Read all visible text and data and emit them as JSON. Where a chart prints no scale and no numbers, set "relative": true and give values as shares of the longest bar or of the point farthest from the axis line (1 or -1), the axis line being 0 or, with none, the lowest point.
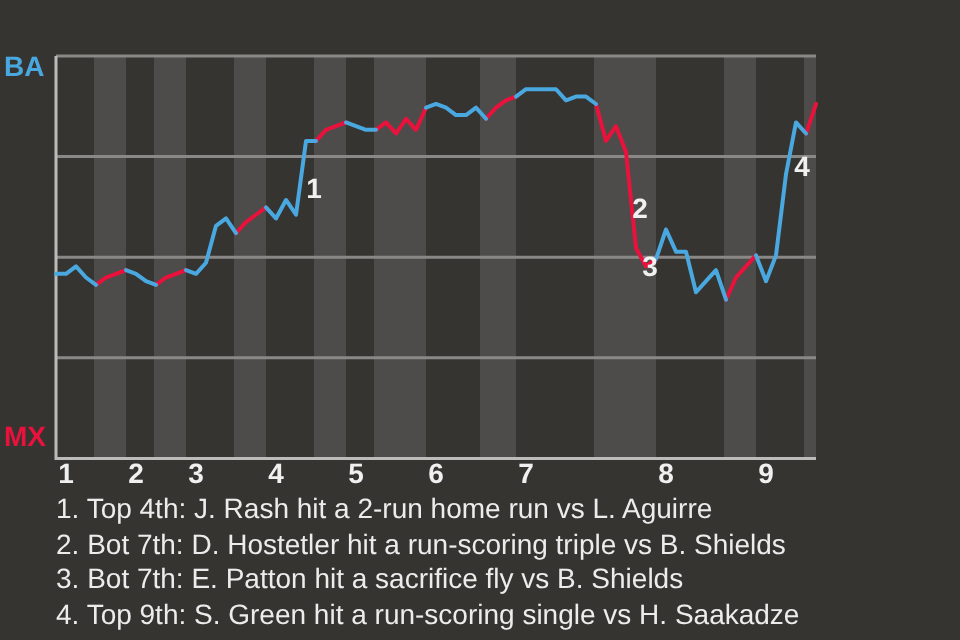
{
  "chart_data": {
    "type": "line",
    "relative": true,
    "categories": [
      null,
      "1",
      null,
      null,
      null,
      null,
      null,
      null,
      "2",
      null,
      null,
      null,
      null,
      null,
      "3",
      null,
      null,
      null,
      null,
      null,
      null,
      null,
      "4",
      null,
      null,
      null,
      null,
      null,
      null,
      null,
      "5",
      null,
      null,
      null,
      null,
      null,
      null,
      null,
      "6",
      null,
      null,
      null,
      null,
      null,
      null,
      null,
      null,
      "7",
      null,
      null,
      null,
      null,
      null,
      null,
      null,
      null,
      null,
      null,
      null,
      null,
      null,
      "8",
      null,
      null,
      null,
      null,
      null,
      null,
      null,
      null,
      null,
      "9",
      null,
      null,
      null,
      null,
      null
    ],
    "tick_labels": "x",
    "grid": "y",
    "legend": false,
    "marker": "none",
    "line_style": "solid",
    "series": [
      {
        "name": "BA",
        "color": "#4aa8e0",
        "values": [
          0.5,
          0.5,
          0.52,
          0.49,
          0.47,
          null,
          null,
          0.51,
          0.5,
          0.48,
          0.47,
          null,
          null,
          0.51,
          0.5,
          0.53,
          0.63,
          0.65,
          0.61,
          null,
          null,
          0.68,
          0.65,
          0.7,
          0.66,
          0.86,
          0.86,
          null,
          null,
          0.91,
          0.9,
          0.89,
          0.89,
          null,
          null,
          null,
          null,
          0.95,
          0.96,
          0.95,
          0.93,
          0.93,
          0.95,
          0.92,
          null,
          null,
          0.98,
          1.0,
          1.0,
          1.0,
          1.0,
          0.97,
          0.98,
          0.98,
          0.96,
          null,
          null,
          null,
          null,
          null,
          0.54,
          0.62,
          0.56,
          0.56,
          0.45,
          0.48,
          0.51,
          0.43,
          null,
          null,
          0.55,
          0.48,
          0.55,
          0.77,
          0.91,
          0.88,
          null
        ]
      },
      {
        "name": "MX",
        "color": "#e8123c",
        "values": [
          null,
          null,
          null,
          null,
          0.47,
          0.49,
          0.5,
          0.51,
          null,
          null,
          0.47,
          0.49,
          0.5,
          0.51,
          null,
          null,
          null,
          null,
          0.61,
          0.64,
          0.66,
          0.68,
          null,
          null,
          null,
          null,
          0.86,
          0.89,
          0.9,
          0.91,
          null,
          null,
          0.89,
          0.91,
          0.88,
          0.92,
          0.89,
          0.95,
          null,
          null,
          null,
          null,
          null,
          0.92,
          0.95,
          0.97,
          0.98,
          null,
          null,
          null,
          null,
          null,
          null,
          null,
          0.96,
          0.86,
          0.9,
          0.83,
          0.57,
          0.52,
          0.54,
          null,
          null,
          null,
          null,
          null,
          null,
          0.43,
          0.49,
          0.52,
          0.55,
          null,
          null,
          null,
          null,
          0.88,
          0.96
        ]
      }
    ],
    "annotations": [
      "1",
      "2",
      "3",
      "4",
      "1. Top 4th: J. Rash hit a 2-run home run vs L. Aguirre",
      "2. Bot 7th: D. Hostetler hit a run-scoring triple vs B. Shields",
      "3. Bot 7th: E. Patton hit a sacrifice fly vs B. Shields",
      "4. Top 9th: S. Green hit a run-scoring single vs H. Saakadze"
    ]
  }
}
